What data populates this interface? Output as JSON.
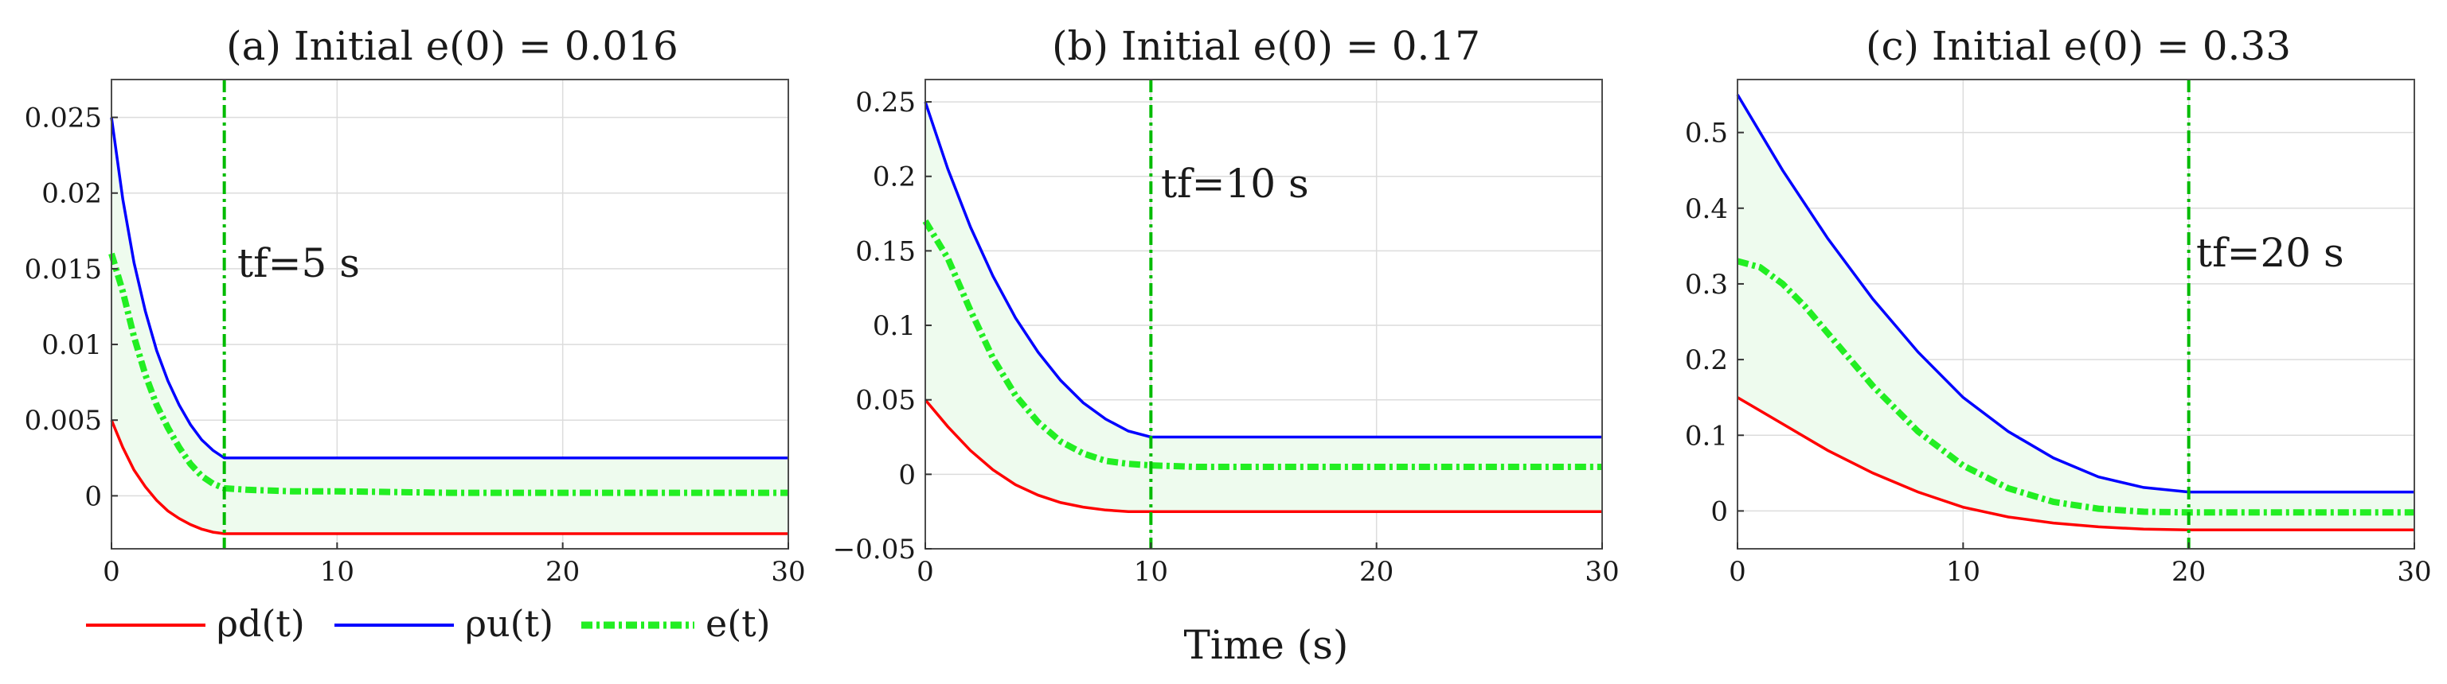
{
  "figure": {
    "xlabel": "Time (s)",
    "legend": {
      "placement": "bottom-left",
      "entries": [
        {
          "key": "rho_d",
          "label": "ρd(t)",
          "color": "#ff0000",
          "style": "solid"
        },
        {
          "key": "rho_u",
          "label": "ρu(t)",
          "color": "#0000ff",
          "style": "solid"
        },
        {
          "key": "e",
          "label": "e(t)",
          "color": "#22ee22",
          "style": "dash-dot-thick"
        }
      ]
    }
  },
  "chart_data": [
    {
      "type": "line",
      "title": "(a) Initial e(0) = 0.016",
      "xlim": [
        0,
        30
      ],
      "ylim": [
        -0.0035,
        0.0275
      ],
      "xticks": [
        0,
        10,
        20,
        30
      ],
      "yticks": [
        0,
        0.005,
        0.01,
        0.015,
        0.02,
        0.025
      ],
      "ytick_labels": [
        "0",
        "0.005",
        "0.01",
        "0.015",
        "0.02",
        "0.025"
      ],
      "grid": true,
      "tf": 5,
      "tf_label": "tf=5 s",
      "series": [
        {
          "key": "rho_u",
          "x": [
            0,
            0.5,
            1,
            1.5,
            2,
            2.5,
            3,
            3.5,
            4,
            4.5,
            5,
            6,
            8,
            10,
            15,
            20,
            25,
            30
          ],
          "y": [
            0.025,
            0.0196,
            0.0154,
            0.0122,
            0.0096,
            0.0076,
            0.006,
            0.0047,
            0.0037,
            0.003,
            0.0025,
            0.0025,
            0.0025,
            0.0025,
            0.0025,
            0.0025,
            0.0025,
            0.0025
          ]
        },
        {
          "key": "rho_d",
          "x": [
            0,
            0.5,
            1,
            1.5,
            2,
            2.5,
            3,
            3.5,
            4,
            4.5,
            5,
            6,
            8,
            10,
            15,
            20,
            25,
            30
          ],
          "y": [
            0.005,
            0.0032,
            0.0017,
            0.0006,
            -0.0003,
            -0.001,
            -0.0015,
            -0.0019,
            -0.0022,
            -0.0024,
            -0.0025,
            -0.0025,
            -0.0025,
            -0.0025,
            -0.0025,
            -0.0025,
            -0.0025,
            -0.0025
          ]
        },
        {
          "key": "e",
          "x": [
            0,
            0.5,
            1,
            1.5,
            2,
            2.5,
            3,
            3.5,
            4,
            4.5,
            5,
            6,
            8,
            10,
            15,
            20,
            25,
            30
          ],
          "y": [
            0.016,
            0.0135,
            0.0105,
            0.008,
            0.006,
            0.0045,
            0.0032,
            0.0021,
            0.0013,
            0.0008,
            0.0005,
            0.0004,
            0.0003,
            0.0003,
            0.0002,
            0.0002,
            0.0002,
            0.0002
          ]
        }
      ]
    },
    {
      "type": "line",
      "title": "(b) Initial e(0) = 0.17",
      "xlim": [
        0,
        30
      ],
      "ylim": [
        -0.05,
        0.265
      ],
      "xticks": [
        0,
        10,
        20,
        30
      ],
      "yticks": [
        -0.05,
        0,
        0.05,
        0.1,
        0.15,
        0.2,
        0.25
      ],
      "ytick_labels": [
        "−0.05",
        "0",
        "0.05",
        "0.1",
        "0.15",
        "0.2",
        "0.25"
      ],
      "grid": true,
      "tf": 10,
      "tf_label": "tf=10 s",
      "series": [
        {
          "key": "rho_u",
          "x": [
            0,
            1,
            2,
            3,
            4,
            5,
            6,
            7,
            8,
            9,
            10,
            12,
            15,
            20,
            25,
            30
          ],
          "y": [
            0.25,
            0.205,
            0.166,
            0.133,
            0.105,
            0.082,
            0.063,
            0.048,
            0.037,
            0.029,
            0.025,
            0.025,
            0.025,
            0.025,
            0.025,
            0.025
          ]
        },
        {
          "key": "rho_d",
          "x": [
            0,
            1,
            2,
            3,
            4,
            5,
            6,
            7,
            8,
            9,
            10,
            12,
            15,
            20,
            25,
            30
          ],
          "y": [
            0.05,
            0.032,
            0.016,
            0.003,
            -0.007,
            -0.014,
            -0.019,
            -0.022,
            -0.024,
            -0.025,
            -0.025,
            -0.025,
            -0.025,
            -0.025,
            -0.025,
            -0.025
          ]
        },
        {
          "key": "e",
          "x": [
            0,
            1,
            2,
            3,
            4,
            5,
            6,
            7,
            8,
            9,
            10,
            12,
            15,
            20,
            25,
            30
          ],
          "y": [
            0.17,
            0.145,
            0.11,
            0.078,
            0.053,
            0.035,
            0.022,
            0.014,
            0.009,
            0.007,
            0.006,
            0.005,
            0.005,
            0.005,
            0.005,
            0.005
          ]
        }
      ]
    },
    {
      "type": "line",
      "title": "(c) Initial e(0) = 0.33",
      "xlim": [
        0,
        30
      ],
      "ylim": [
        -0.05,
        0.57
      ],
      "xticks": [
        0,
        10,
        20,
        30
      ],
      "yticks": [
        0,
        0.1,
        0.2,
        0.3,
        0.4,
        0.5
      ],
      "ytick_labels": [
        "0",
        "0.1",
        "0.2",
        "0.3",
        "0.4",
        "0.5"
      ],
      "grid": true,
      "tf": 20,
      "tf_label": "tf=20 s",
      "series": [
        {
          "key": "rho_u",
          "x": [
            0,
            2,
            4,
            6,
            8,
            10,
            12,
            14,
            16,
            18,
            20,
            22,
            25,
            30
          ],
          "y": [
            0.55,
            0.45,
            0.36,
            0.28,
            0.21,
            0.15,
            0.105,
            0.07,
            0.045,
            0.031,
            0.025,
            0.025,
            0.025,
            0.025
          ]
        },
        {
          "key": "rho_d",
          "x": [
            0,
            2,
            4,
            6,
            8,
            10,
            12,
            14,
            16,
            18,
            20,
            22,
            25,
            30
          ],
          "y": [
            0.15,
            0.115,
            0.08,
            0.05,
            0.025,
            0.005,
            -0.008,
            -0.016,
            -0.021,
            -0.024,
            -0.025,
            -0.025,
            -0.025,
            -0.025
          ]
        },
        {
          "key": "e",
          "x": [
            0,
            1,
            2,
            3,
            4,
            6,
            8,
            10,
            12,
            14,
            16,
            18,
            20,
            22,
            25,
            30
          ],
          "y": [
            0.33,
            0.322,
            0.3,
            0.27,
            0.235,
            0.165,
            0.105,
            0.06,
            0.03,
            0.012,
            0.003,
            -0.001,
            -0.002,
            -0.002,
            -0.002,
            -0.002
          ]
        }
      ]
    }
  ]
}
